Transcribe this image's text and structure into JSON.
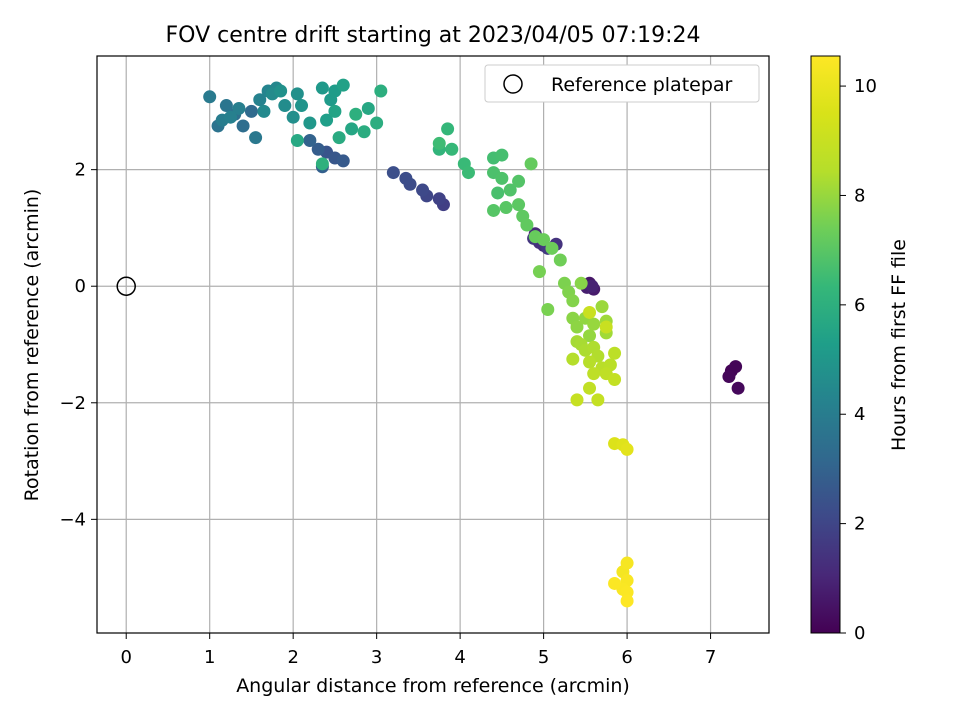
{
  "chart_data": {
    "type": "scatter",
    "title": "FOV centre drift starting at 2023/04/05 07:19:24",
    "xlabel": "Angular distance from reference (arcmin)",
    "ylabel": "Rotation from reference (arcmin)",
    "xlim": [
      -0.35,
      7.7
    ],
    "ylim": [
      -5.95,
      3.95
    ],
    "xticks": [
      "0",
      "1",
      "2",
      "3",
      "4",
      "5",
      "6",
      "7"
    ],
    "yticks": [
      "−4",
      "−2",
      "0",
      "2"
    ],
    "grid": true,
    "legend": {
      "label": "Reference platepar",
      "placement": "top-right"
    },
    "reference_point": {
      "x": 0,
      "y": 0
    },
    "colorbar": {
      "label": "Hours from first FF file",
      "range": [
        0,
        10.55
      ],
      "ticks": [
        "0",
        "2",
        "4",
        "6",
        "8",
        "10"
      ],
      "colormap": "viridis"
    },
    "points": [
      [
        7.25,
        -1.45,
        0.05
      ],
      [
        7.3,
        -1.38,
        0.1
      ],
      [
        7.22,
        -1.55,
        0.15
      ],
      [
        7.33,
        -1.75,
        0.2
      ],
      [
        5.55,
        0.05,
        0.6
      ],
      [
        5.6,
        -0.05,
        0.7
      ],
      [
        5.52,
        -0.02,
        0.8
      ],
      [
        5.58,
        0.0,
        0.9
      ],
      [
        4.9,
        0.9,
        1.1
      ],
      [
        5.0,
        0.7,
        1.2
      ],
      [
        4.95,
        0.75,
        1.3
      ],
      [
        5.15,
        0.72,
        1.4
      ],
      [
        4.88,
        0.82,
        1.5
      ],
      [
        5.05,
        0.65,
        1.6
      ],
      [
        3.8,
        1.4,
        1.8
      ],
      [
        3.75,
        1.5,
        1.9
      ],
      [
        3.6,
        1.55,
        2.0
      ],
      [
        3.55,
        1.65,
        2.1
      ],
      [
        3.4,
        1.75,
        2.2
      ],
      [
        3.35,
        1.85,
        2.25
      ],
      [
        3.2,
        1.95,
        2.3
      ],
      [
        2.4,
        2.3,
        2.5
      ],
      [
        2.5,
        2.2,
        2.6
      ],
      [
        2.6,
        2.15,
        2.7
      ],
      [
        2.3,
        2.35,
        2.8
      ],
      [
        2.35,
        2.05,
        2.9
      ],
      [
        2.2,
        2.5,
        3.0
      ],
      [
        1.5,
        3.0,
        3.3
      ],
      [
        1.4,
        2.75,
        3.4
      ],
      [
        1.3,
        2.95,
        3.5
      ],
      [
        1.1,
        2.75,
        3.6
      ],
      [
        1.2,
        3.1,
        3.7
      ],
      [
        1.55,
        2.55,
        3.8
      ],
      [
        1.0,
        3.25,
        3.9
      ],
      [
        1.15,
        2.85,
        4.0
      ],
      [
        1.35,
        3.05,
        4.1
      ],
      [
        1.25,
        2.9,
        4.15
      ],
      [
        1.6,
        3.2,
        4.2
      ],
      [
        1.7,
        3.35,
        4.3
      ],
      [
        1.8,
        3.4,
        4.4
      ],
      [
        1.65,
        3.0,
        4.5
      ],
      [
        1.75,
        3.3,
        4.55
      ],
      [
        1.9,
        3.1,
        4.6
      ],
      [
        2.0,
        2.9,
        4.7
      ],
      [
        2.05,
        3.3,
        4.75
      ],
      [
        1.85,
        3.35,
        4.8
      ],
      [
        2.1,
        3.1,
        4.9
      ],
      [
        2.2,
        2.8,
        5.0
      ],
      [
        2.35,
        3.4,
        5.1
      ],
      [
        2.45,
        3.2,
        5.15
      ],
      [
        2.5,
        3.35,
        5.2
      ],
      [
        2.4,
        2.85,
        5.3
      ],
      [
        2.6,
        3.45,
        5.4
      ],
      [
        2.5,
        3.0,
        5.5
      ],
      [
        2.7,
        2.7,
        5.6
      ],
      [
        2.9,
        3.05,
        5.65
      ],
      [
        2.05,
        2.5,
        5.7
      ],
      [
        2.55,
        2.55,
        5.8
      ],
      [
        2.85,
        2.65,
        5.85
      ],
      [
        3.0,
        2.8,
        5.9
      ],
      [
        3.05,
        3.35,
        5.95
      ],
      [
        2.75,
        2.95,
        6.0
      ],
      [
        2.35,
        2.1,
        6.05
      ],
      [
        3.75,
        2.35,
        6.2
      ],
      [
        3.85,
        2.7,
        6.3
      ],
      [
        3.9,
        2.35,
        6.35
      ],
      [
        4.05,
        2.1,
        6.4
      ],
      [
        4.1,
        1.95,
        6.45
      ],
      [
        3.75,
        2.45,
        6.5
      ],
      [
        4.4,
        2.2,
        6.6
      ],
      [
        4.5,
        2.25,
        6.65
      ],
      [
        4.45,
        1.6,
        6.7
      ],
      [
        4.4,
        1.95,
        6.75
      ],
      [
        4.5,
        1.85,
        6.8
      ],
      [
        4.6,
        1.65,
        6.85
      ],
      [
        4.7,
        1.8,
        6.9
      ],
      [
        4.4,
        1.3,
        6.95
      ],
      [
        4.55,
        1.35,
        7.0
      ],
      [
        4.7,
        1.4,
        7.05
      ],
      [
        4.75,
        1.2,
        7.1
      ],
      [
        4.8,
        1.05,
        7.15
      ],
      [
        4.85,
        2.1,
        7.2
      ],
      [
        4.9,
        0.85,
        7.25
      ],
      [
        5.0,
        0.8,
        7.3
      ],
      [
        5.1,
        0.65,
        7.35
      ],
      [
        5.2,
        0.45,
        7.4
      ],
      [
        4.95,
        0.25,
        7.5
      ],
      [
        5.05,
        -0.4,
        7.55
      ],
      [
        5.25,
        0.05,
        7.6
      ],
      [
        5.3,
        -0.1,
        7.65
      ],
      [
        5.35,
        -0.25,
        7.7
      ],
      [
        5.45,
        0.05,
        7.75
      ],
      [
        5.35,
        -0.55,
        7.8
      ],
      [
        5.4,
        -0.7,
        7.85
      ],
      [
        5.5,
        -0.55,
        7.9
      ],
      [
        5.55,
        -0.85,
        7.95
      ],
      [
        5.6,
        -0.65,
        8.0
      ],
      [
        5.7,
        -0.35,
        8.05
      ],
      [
        5.75,
        -0.6,
        8.1
      ],
      [
        5.75,
        -0.8,
        8.15
      ],
      [
        5.4,
        -0.95,
        8.2
      ],
      [
        5.45,
        -1.0,
        8.25
      ],
      [
        5.5,
        -1.1,
        8.3
      ],
      [
        5.6,
        -1.05,
        8.35
      ],
      [
        5.65,
        -1.2,
        8.4
      ],
      [
        5.35,
        -1.25,
        8.45
      ],
      [
        5.55,
        -1.3,
        8.5
      ],
      [
        5.7,
        -1.4,
        8.55
      ],
      [
        5.8,
        -1.35,
        8.6
      ],
      [
        5.85,
        -1.15,
        8.65
      ],
      [
        5.6,
        -1.5,
        8.7
      ],
      [
        5.75,
        -1.5,
        8.75
      ],
      [
        5.55,
        -1.75,
        8.8
      ],
      [
        5.85,
        -1.6,
        8.85
      ],
      [
        5.65,
        -1.95,
        8.9
      ],
      [
        5.4,
        -1.95,
        8.95
      ],
      [
        5.75,
        -0.7,
        9.0
      ],
      [
        5.55,
        -0.45,
        9.05
      ],
      [
        5.85,
        -2.7,
        9.6
      ],
      [
        5.95,
        -2.72,
        9.7
      ],
      [
        6.0,
        -2.8,
        9.8
      ],
      [
        5.95,
        -4.9,
        10.3
      ],
      [
        6.0,
        -4.75,
        10.35
      ],
      [
        6.0,
        -5.05,
        10.4
      ],
      [
        5.95,
        -5.2,
        10.45
      ],
      [
        5.85,
        -5.1,
        10.5
      ],
      [
        6.0,
        -5.25,
        10.5
      ],
      [
        6.0,
        -5.4,
        10.55
      ]
    ]
  }
}
